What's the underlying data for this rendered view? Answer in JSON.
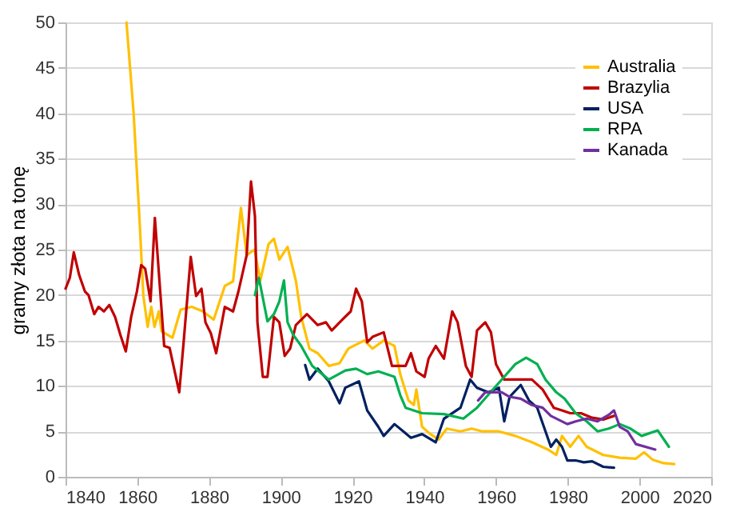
{
  "chart_data": {
    "type": "line",
    "ylabel": "gramy złota na tonę",
    "xlim": [
      1840,
      2020
    ],
    "xticks": [
      1840,
      1860,
      1880,
      1900,
      1920,
      1940,
      1960,
      1980,
      2000,
      2020
    ],
    "ylim": [
      0,
      50
    ],
    "yticks": [
      0,
      5,
      10,
      15,
      20,
      25,
      30,
      35,
      40,
      45,
      50
    ],
    "grid": "y",
    "legend": "top right",
    "series": [
      {
        "name": "Australia",
        "color": "#ffc000",
        "x": [
          1857,
          1859,
          1860.6,
          1861.7,
          1862.9,
          1863.9,
          1864.8,
          1866,
          1866.8,
          1869.8,
          1872.1,
          1875.2,
          1878.3,
          1881.3,
          1884.4,
          1886.7,
          1888.9,
          1890.5,
          1892.7,
          1894.3,
          1896.6,
          1898.1,
          1899.6,
          1901.9,
          1904.2,
          1905.7,
          1908,
          1910.3,
          1913.4,
          1916.4,
          1918.8,
          1920.3,
          1923.3,
          1925.6,
          1928.7,
          1931.7,
          1933.3,
          1935.6,
          1937.1,
          1937.8,
          1939.4,
          1941.7,
          1944,
          1946.3,
          1950.1,
          1953.2,
          1956.2,
          1960.8,
          1965.4,
          1970,
          1974.5,
          1976.8,
          1978.4,
          1980.7,
          1983,
          1985.3,
          1989.9,
          1994.5,
          1999,
          2001.3,
          2003.6,
          2006.7,
          2009.7
        ],
        "values": [
          50,
          39.9,
          28.5,
          19.9,
          16.5,
          18.7,
          16.5,
          18.2,
          16,
          15.3,
          18.4,
          18.7,
          18.2,
          17.3,
          21,
          21.5,
          29.6,
          24.4,
          25,
          21.6,
          25.6,
          26.2,
          23.9,
          25.3,
          21.6,
          17.6,
          14.1,
          13.6,
          12.2,
          12.5,
          14.1,
          14.4,
          15,
          14.1,
          15,
          14.4,
          11.3,
          8.4,
          7.9,
          9.6,
          5.5,
          4.7,
          4.1,
          5.3,
          5,
          5.3,
          5,
          5,
          4.5,
          3.8,
          3,
          2.4,
          4.5,
          3.3,
          4.5,
          3.3,
          2.4,
          2.1,
          2,
          2.7,
          1.9,
          1.5,
          1.4
        ]
      },
      {
        "name": "Brazylia",
        "color": "#c00000",
        "x": [
          1840,
          1841.2,
          1842.3,
          1843.8,
          1845.4,
          1846.4,
          1848,
          1849.2,
          1850.7,
          1852.2,
          1853.8,
          1855.3,
          1856.8,
          1858.3,
          1859.9,
          1861.1,
          1862.2,
          1863.7,
          1864.9,
          1867.5,
          1869,
          1871.7,
          1872.9,
          1874.9,
          1876.4,
          1877.9,
          1879,
          1880.5,
          1882,
          1884.4,
          1886.7,
          1888.2,
          1890.5,
          1891.7,
          1892.8,
          1893.5,
          1895,
          1896.3,
          1898.1,
          1899.6,
          1901.1,
          1902.6,
          1904.2,
          1907.3,
          1910.3,
          1912.6,
          1914.2,
          1917.2,
          1919.5,
          1921,
          1922.6,
          1924.1,
          1925.6,
          1928.7,
          1931,
          1934.8,
          1936.3,
          1937.8,
          1940.1,
          1941.2,
          1943.2,
          1945.5,
          1947.8,
          1949.3,
          1951.6,
          1953.2,
          1954.7,
          1957,
          1958.6,
          1960,
          1962.3,
          1965.4,
          1970,
          1973,
          1976.1,
          1978.4,
          1980.7,
          1983.7,
          1986.8,
          1989.9,
          1992.9
        ],
        "values": [
          20.7,
          21.9,
          24.7,
          22.2,
          20.4,
          20,
          17.9,
          18.7,
          18.2,
          18.9,
          17.6,
          15.6,
          13.8,
          17.6,
          20.4,
          23.3,
          22.9,
          19.3,
          28.5,
          14.4,
          14.2,
          9.3,
          14.7,
          24.2,
          19.9,
          20.7,
          17,
          15.8,
          13.6,
          18.7,
          18.2,
          20.4,
          24.4,
          32.5,
          28.7,
          17,
          11,
          11,
          17.6,
          17,
          13.3,
          14.1,
          16.7,
          17.9,
          16.7,
          17,
          16.1,
          17.3,
          18.2,
          20.7,
          19.3,
          14.8,
          15.4,
          15.9,
          12.2,
          12.2,
          13.6,
          11.6,
          11,
          13,
          14.4,
          13,
          18.2,
          17,
          12.2,
          11,
          16.1,
          17,
          15.9,
          12.4,
          10.7,
          10.7,
          10.7,
          9.6,
          7.6,
          7.3,
          7,
          7,
          6.5,
          6.3,
          6.7
        ]
      },
      {
        "name": "USA",
        "color": "#002060",
        "x": [
          1906.8,
          1908,
          1910.3,
          1913.4,
          1916.4,
          1918,
          1921.8,
          1924.1,
          1927.2,
          1928.7,
          1931.7,
          1936.3,
          1939.4,
          1943.2,
          1945.5,
          1950.1,
          1952.8,
          1954.7,
          1957.8,
          1960.8,
          1962.3,
          1963.8,
          1966.9,
          1969.2,
          1971.5,
          1973.8,
          1975.3,
          1976.8,
          1978.4,
          1979.9,
          1982.2,
          1984.5,
          1986.8,
          1989.9,
          1992.9
        ],
        "values": [
          12.3,
          10.7,
          11.9,
          10.5,
          8.1,
          9.8,
          10.5,
          7.3,
          5.5,
          4.5,
          5.8,
          4.3,
          4.7,
          3.8,
          6.4,
          7.6,
          10.7,
          9.8,
          9.3,
          9.8,
          6.1,
          8.8,
          10.1,
          8.4,
          7.6,
          5,
          3.3,
          4.1,
          3.3,
          1.8,
          1.8,
          1.6,
          1.7,
          1.1,
          1
        ]
      },
      {
        "name": "RPA",
        "color": "#00b050",
        "x": [
          1892.8,
          1893.9,
          1896.3,
          1898.1,
          1899.6,
          1900.9,
          1901.9,
          1903.5,
          1905.7,
          1908.8,
          1913.4,
          1918,
          1921,
          1924.1,
          1927.2,
          1931.7,
          1933.3,
          1934.8,
          1939.4,
          1945.5,
          1950.9,
          1954.7,
          1957.8,
          1961.6,
          1965.4,
          1968.4,
          1971.5,
          1973.8,
          1976.8,
          1979.1,
          1982.2,
          1985.3,
          1988.3,
          1991.4,
          1994.5,
          1997.5,
          2000.6,
          2005.1,
          2008.2
        ],
        "values": [
          20,
          21.9,
          17.1,
          17.9,
          19.3,
          21.6,
          17,
          15.6,
          14.4,
          12.2,
          10.7,
          11.7,
          11.9,
          11.3,
          11.6,
          11,
          9,
          7.6,
          7,
          6.9,
          6.4,
          7.6,
          9,
          10.7,
          12.4,
          13.1,
          12.4,
          10.7,
          9.3,
          8.6,
          7,
          6.1,
          5,
          5.3,
          5.8,
          5.3,
          4.5,
          5.1,
          3.3
        ]
      },
      {
        "name": "Kanada",
        "color": "#7030a0",
        "x": [
          1955,
          1957,
          1961.6,
          1963.8,
          1966.9,
          1970,
          1973,
          1975.3,
          1979.9,
          1982.2,
          1985.3,
          1988.3,
          1991.4,
          1992.9,
          1994.5,
          1996.7,
          1999,
          2004.4
        ],
        "values": [
          8.4,
          9.3,
          9.3,
          8.8,
          8.6,
          7.9,
          7.6,
          6.7,
          5.8,
          6.1,
          6.4,
          6.1,
          6.8,
          7.3,
          5.5,
          5,
          3.6,
          3
        ]
      }
    ]
  }
}
